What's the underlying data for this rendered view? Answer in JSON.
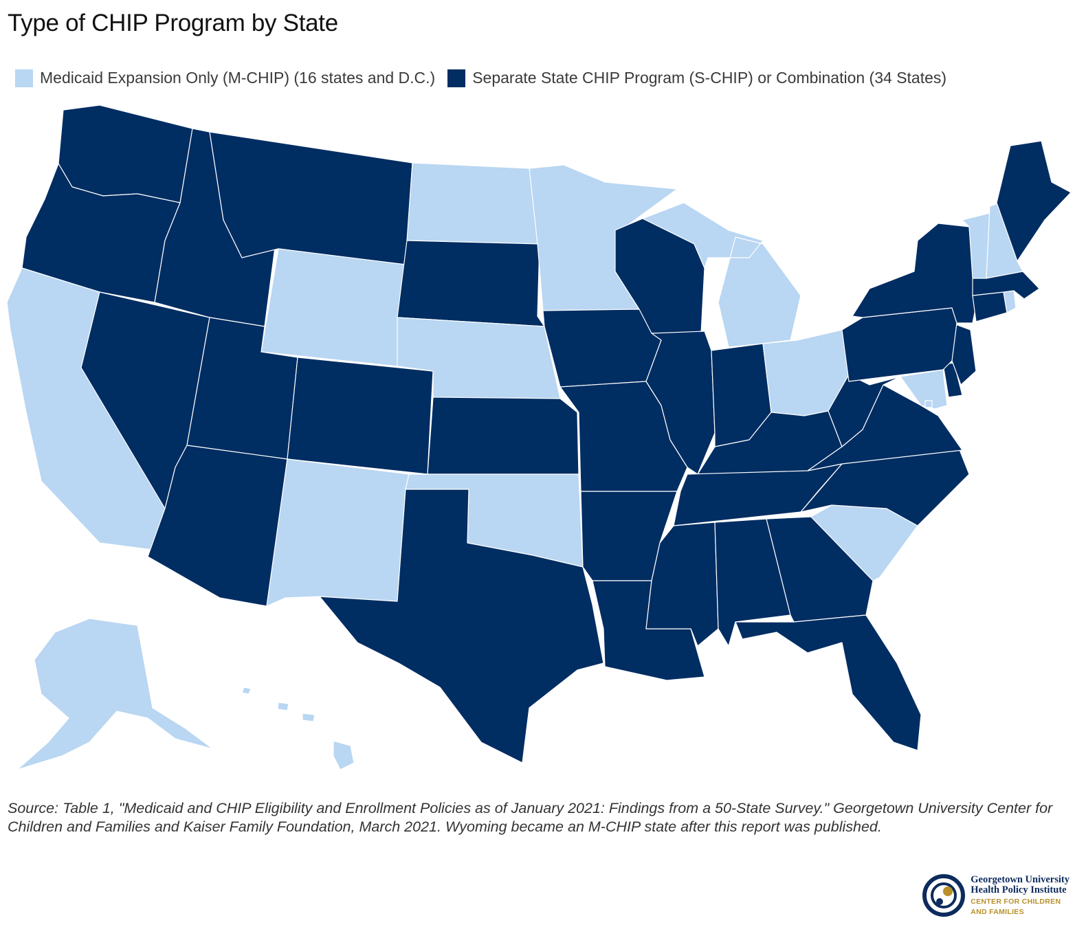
{
  "title": "Type of CHIP Program by State",
  "colors": {
    "mchip": "#b9d6f2",
    "schip": "#002d62",
    "gold": "#b8902a"
  },
  "legend": {
    "mchip_label": "Medicaid Expansion Only (M-CHIP) (16 states and D.C.)",
    "schip_label": "Separate State CHIP Program (S-CHIP) or Combination (34 States)"
  },
  "states": {
    "WA": "schip",
    "OR": "schip",
    "CA": "mchip",
    "NV": "schip",
    "ID": "schip",
    "MT": "schip",
    "WY": "mchip",
    "UT": "schip",
    "AZ": "schip",
    "CO": "schip",
    "NM": "mchip",
    "ND": "mchip",
    "SD": "schip",
    "NE": "mchip",
    "KS": "schip",
    "OK": "mchip",
    "TX": "schip",
    "MN": "mchip",
    "IA": "schip",
    "MO": "schip",
    "AR": "schip",
    "LA": "schip",
    "WI": "schip",
    "IL": "schip",
    "MI": "mchip",
    "IN": "schip",
    "OH": "mchip",
    "KY": "schip",
    "TN": "schip",
    "MS": "schip",
    "AL": "schip",
    "GA": "schip",
    "FL": "schip",
    "SC": "mchip",
    "NC": "schip",
    "VA": "schip",
    "WV": "schip",
    "MD": "mchip",
    "DE": "schip",
    "NJ": "schip",
    "PA": "schip",
    "NY": "schip",
    "CT": "schip",
    "RI": "mchip",
    "MA": "schip",
    "VT": "mchip",
    "NH": "mchip",
    "ME": "schip",
    "AK": "mchip",
    "HI": "mchip",
    "DC": "mchip"
  },
  "source": "Source: Table 1, \"Medicaid and CHIP Eligibility and Enrollment Policies as of January 2021: Findings from a 50-State Survey.\" Georgetown University Center for Children and Families and Kaiser Family Foundation, March 2021. Wyoming became an M-CHIP state after this report was published.",
  "logo": {
    "line1": "Georgetown University",
    "line2": "Health Policy Institute",
    "line3": "CENTER FOR CHILDREN",
    "line4": "AND FAMILIES"
  }
}
